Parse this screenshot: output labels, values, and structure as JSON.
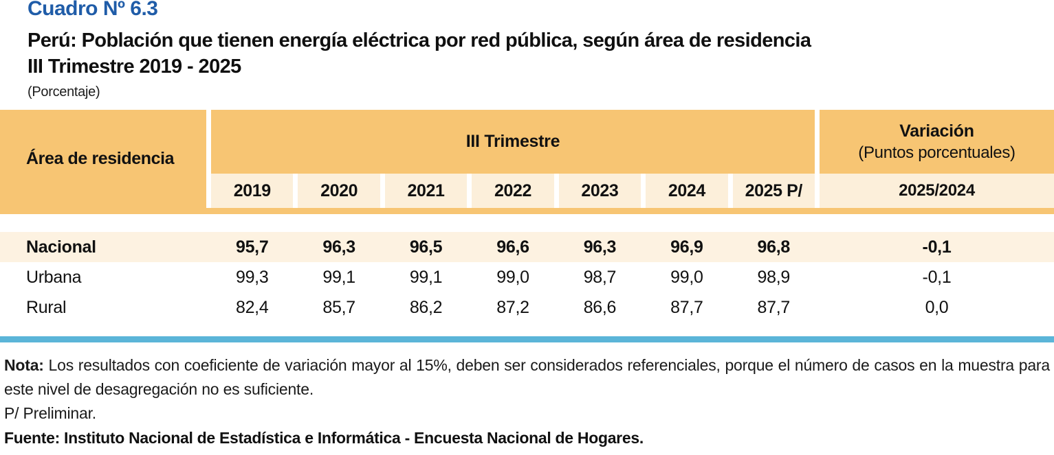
{
  "header": {
    "cuadro": "Cuadro Nº 6.3",
    "title": "Perú: Población que tienen energía eléctrica por red pública, según área de residencia",
    "subtitle": "III Trimestre 2019 - 2025",
    "unit": "(Porcentaje)"
  },
  "table": {
    "area_col_label": "Área de residencia",
    "group_col_label": "III Trimestre",
    "variation_title": "Variación",
    "variation_sub": "(Puntos porcentuales)",
    "years": [
      "2019",
      "2020",
      "2021",
      "2022",
      "2023",
      "2024",
      "2025 P/"
    ],
    "variation_year": "2025/2024",
    "rows": [
      {
        "label": "Nacional",
        "values": [
          "95,7",
          "96,3",
          "96,5",
          "96,6",
          "96,3",
          "96,9",
          "96,8"
        ],
        "variation": "-0,1",
        "highlight": true
      },
      {
        "label": "Urbana",
        "values": [
          "99,3",
          "99,1",
          "99,1",
          "99,0",
          "98,7",
          "99,0",
          "98,9"
        ],
        "variation": "-0,1",
        "highlight": false
      },
      {
        "label": "Rural",
        "values": [
          "82,4",
          "85,7",
          "86,2",
          "87,2",
          "86,6",
          "87,7",
          "87,7"
        ],
        "variation": "0,0",
        "highlight": false
      }
    ]
  },
  "notes": {
    "nota_label": "Nota:",
    "nota_text": " Los resultados con coeficiente de variación mayor al 15%, deben ser considerados referenciales, porque el número de casos en la muestra para este nivel de desagregación no es suficiente.",
    "preliminary": "P/ Preliminar.",
    "source": "Fuente: Instituto Nacional de Estadística e Informática - Encuesta Nacional de Hogares."
  },
  "colors": {
    "header_orange": "#F7C573",
    "cell_cream": "#FCEFDA",
    "highlight_row": "#FDF2E1",
    "rule_blue": "#5BB5D8",
    "title_blue": "#1F5CA8"
  },
  "chart_data": {
    "type": "table",
    "title": "Perú: Población que tienen energía eléctrica por red pública, según área de residencia, III Trimestre 2019 - 2025 (Porcentaje)",
    "categories": [
      "2019",
      "2020",
      "2021",
      "2022",
      "2023",
      "2024",
      "2025 P/"
    ],
    "series": [
      {
        "name": "Nacional",
        "values": [
          95.7,
          96.3,
          96.5,
          96.6,
          96.3,
          96.9,
          96.8
        ],
        "variation_2025_2024": -0.1
      },
      {
        "name": "Urbana",
        "values": [
          99.3,
          99.1,
          99.1,
          99.0,
          98.7,
          99.0,
          98.9
        ],
        "variation_2025_2024": -0.1
      },
      {
        "name": "Rural",
        "values": [
          82.4,
          85.7,
          86.2,
          87.2,
          86.6,
          87.7,
          87.7
        ],
        "variation_2025_2024": 0.0
      }
    ]
  }
}
